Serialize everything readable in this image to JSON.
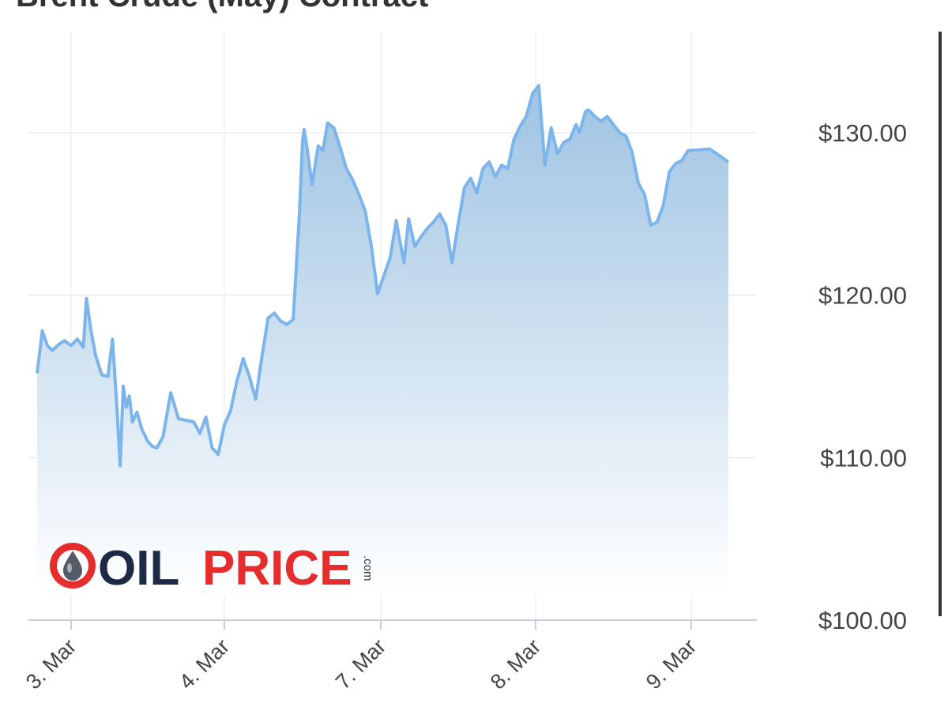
{
  "chart_data": {
    "type": "area",
    "title": "Brent Crude (May) Contract",
    "ylabel": "",
    "xlabel": "",
    "ylim": [
      100,
      130
    ],
    "y_ticks": [
      100,
      110,
      120,
      130
    ],
    "y_tick_format": "$%.2f",
    "y_axis_position": "right",
    "x_ticks": [
      "3. Mar",
      "4. Mar",
      "7. Mar",
      "8. Mar",
      "9. Mar"
    ],
    "grid": true,
    "legend": "none",
    "line_color": "#7cb5ec",
    "fill_color_top": "#9ec3e2",
    "fill_color_bottom": "#ffffff",
    "series": [
      {
        "x": [
          0,
          0.03,
          0.06,
          0.09,
          0.12,
          0.16,
          0.2,
          0.24,
          0.28,
          0.3,
          0.33,
          0.36,
          0.4,
          0.44,
          0.47,
          0.5,
          0.52,
          0.54,
          0.56,
          0.58,
          0.6,
          0.63,
          0.66,
          0.7,
          0.73,
          0.76,
          0.8,
          0.85,
          0.9,
          0.95,
          1.0,
          1.04,
          1.08,
          1.12,
          1.16,
          1.2,
          1.24,
          1.28,
          1.32,
          1.36,
          1.4,
          1.44,
          1.48,
          1.52,
          1.56,
          1.6,
          1.64,
          1.68,
          1.7,
          1.71,
          1.73,
          1.76,
          1.8,
          1.83,
          1.86,
          1.9,
          1.94,
          1.98,
          2.02,
          2.06,
          2.1,
          2.14,
          2.18,
          2.22,
          2.26,
          2.3,
          2.32,
          2.35,
          2.38,
          2.42,
          2.46,
          2.5,
          2.54,
          2.58,
          2.62,
          2.66,
          2.7,
          2.74,
          2.78,
          2.82,
          2.86,
          2.9,
          2.94,
          2.98,
          3.02,
          3.06,
          3.1,
          3.14,
          3.18,
          3.22,
          3.26,
          3.3,
          3.34,
          3.38,
          3.42,
          3.46,
          3.48,
          3.5,
          3.52,
          3.54,
          3.58,
          3.62,
          3.66,
          3.7,
          3.74,
          3.78,
          3.82,
          3.86,
          3.9,
          3.94,
          3.98,
          4.02,
          4.06,
          4.1,
          4.14,
          4.18,
          4.22,
          4.24
        ],
        "values": [
          115.2,
          117.8,
          116.9,
          116.6,
          116.9,
          117.2,
          116.9,
          117.3,
          116.8,
          119.8,
          117.8,
          116.3,
          115.1,
          115.0,
          117.3,
          112.9,
          109.5,
          114.4,
          113.1,
          113.8,
          112.2,
          112.8,
          111.8,
          111.0,
          110.7,
          110.6,
          111.3,
          114.0,
          112.4,
          112.3,
          112.2,
          111.5,
          112.5,
          110.6,
          110.2,
          112.0,
          112.9,
          114.7,
          116.1,
          115.0,
          113.6,
          116.2,
          118.6,
          118.9,
          118.4,
          118.2,
          118.5,
          125.0,
          129.5,
          130.2,
          129.0,
          126.8,
          129.2,
          128.9,
          130.6,
          130.3,
          129.1,
          127.8,
          127.1,
          126.2,
          125.2,
          123.0,
          120.1,
          121.2,
          122.3,
          124.6,
          123.5,
          122.0,
          124.7,
          123.0,
          123.6,
          124.1,
          124.5,
          125.0,
          124.3,
          122.0,
          124.4,
          126.6,
          127.2,
          126.3,
          127.8,
          128.2,
          127.3,
          128.0,
          127.8,
          129.6,
          130.4,
          131.0,
          132.4,
          132.9,
          128.0,
          130.3,
          128.7,
          129.4,
          129.6,
          130.5,
          130.0,
          130.6,
          131.3,
          131.4,
          131.0,
          130.7,
          131.0,
          130.5,
          130.0,
          129.8,
          128.8,
          126.9,
          126.2,
          124.3,
          124.5,
          125.5,
          127.6,
          128.1,
          128.3,
          128.9,
          129.0,
          128.2
        ]
      }
    ]
  },
  "logo": {
    "part1": "OIL",
    "part2": "PRICE",
    "suffix": ".com"
  }
}
